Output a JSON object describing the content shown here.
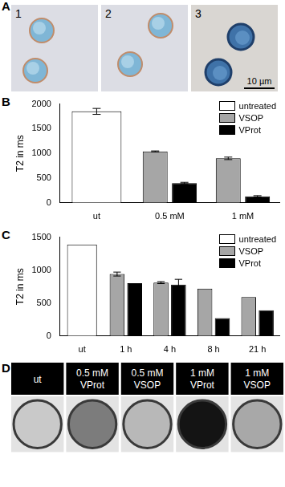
{
  "panel_a": {
    "panel": "A",
    "images": [
      "1",
      "2",
      "3"
    ],
    "scale_bar": "10 µm"
  },
  "chart_data": [
    {
      "panel": "B",
      "type": "bar",
      "y_label": "T2 in ms",
      "categories": [
        "ut",
        "0.5 mM",
        "1 mM"
      ],
      "series": [
        {
          "name": "untreated",
          "color": "#ffffff",
          "values": [
            1850,
            null,
            null
          ],
          "errors": [
            60,
            null,
            null
          ]
        },
        {
          "name": "VSOP",
          "color": "#a6a6a6",
          "values": [
            null,
            1040,
            900
          ],
          "errors": [
            null,
            10,
            25
          ]
        },
        {
          "name": "VProt",
          "color": "#000000",
          "values": [
            null,
            400,
            130
          ],
          "errors": [
            null,
            15,
            15
          ]
        }
      ],
      "ylim": [
        0,
        2000
      ],
      "yticks": [
        0,
        500,
        1000,
        1500,
        2000
      ],
      "grid": false,
      "legend": "top right"
    },
    {
      "panel": "C",
      "type": "bar",
      "y_label": "T2 in ms",
      "categories": [
        "ut",
        "1 h",
        "4 h",
        "8 h",
        "21 h"
      ],
      "series": [
        {
          "name": "untreated",
          "color": "#ffffff",
          "values": [
            1390,
            null,
            null,
            null,
            null
          ],
          "errors": [
            null,
            null,
            null,
            null,
            null
          ]
        },
        {
          "name": "VSOP",
          "color": "#a6a6a6",
          "values": [
            null,
            940,
            810,
            720,
            590
          ],
          "errors": [
            null,
            30,
            15,
            null,
            null
          ]
        },
        {
          "name": "VProt",
          "color": "#000000",
          "values": [
            null,
            800,
            780,
            270,
            390
          ],
          "errors": [
            null,
            null,
            80,
            null,
            null
          ]
        }
      ],
      "ylim": [
        0,
        1500
      ],
      "yticks": [
        0,
        500,
        1000,
        1500
      ],
      "grid": false,
      "legend": "top right"
    }
  ],
  "panel_d": {
    "panel": "D",
    "images": [
      [
        "ut"
      ],
      [
        "0.5 mM",
        "VProt"
      ],
      [
        "0.5 mM",
        "VSOP"
      ],
      [
        "1 mM",
        "VProt"
      ],
      [
        "1 mM",
        "VSOP"
      ]
    ]
  }
}
